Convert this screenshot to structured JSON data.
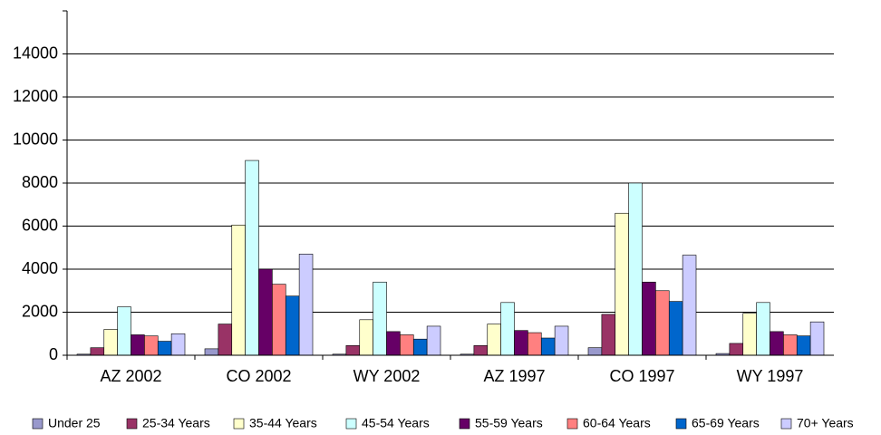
{
  "chart_data": {
    "type": "bar",
    "categories": [
      "AZ 2002",
      "CO 2002",
      "WY 2002",
      "AZ 1997",
      "CO 1997",
      "WY 1997"
    ],
    "series": [
      {
        "name": "Under 25",
        "color": "#9999cc",
        "values": [
          50,
          300,
          50,
          50,
          350,
          80
        ]
      },
      {
        "name": "25-34 Years",
        "color": "#993366",
        "values": [
          350,
          1450,
          450,
          450,
          1900,
          550
        ]
      },
      {
        "name": "35-44 Years",
        "color": "#ffffcc",
        "values": [
          1200,
          6050,
          1650,
          1450,
          6600,
          1950
        ]
      },
      {
        "name": "45-54 Years",
        "color": "#ccffff",
        "values": [
          2250,
          9050,
          3400,
          2450,
          8000,
          2450
        ]
      },
      {
        "name": "55-59 Years",
        "color": "#660066",
        "values": [
          950,
          4000,
          1100,
          1150,
          3400,
          1100
        ]
      },
      {
        "name": "60-64 Years",
        "color": "#ff8080",
        "values": [
          900,
          3300,
          950,
          1050,
          3000,
          950
        ]
      },
      {
        "name": "65-69 Years",
        "color": "#0066cc",
        "values": [
          650,
          2750,
          750,
          800,
          2500,
          900
        ]
      },
      {
        "name": "70+ Years",
        "color": "#ccccff",
        "values": [
          1000,
          4700,
          1350,
          1350,
          4650,
          1550
        ]
      }
    ],
    "ylim": [
      0,
      16000
    ],
    "yticks": [
      0,
      2000,
      4000,
      6000,
      8000,
      10000,
      12000,
      14000
    ],
    "grid": true
  }
}
